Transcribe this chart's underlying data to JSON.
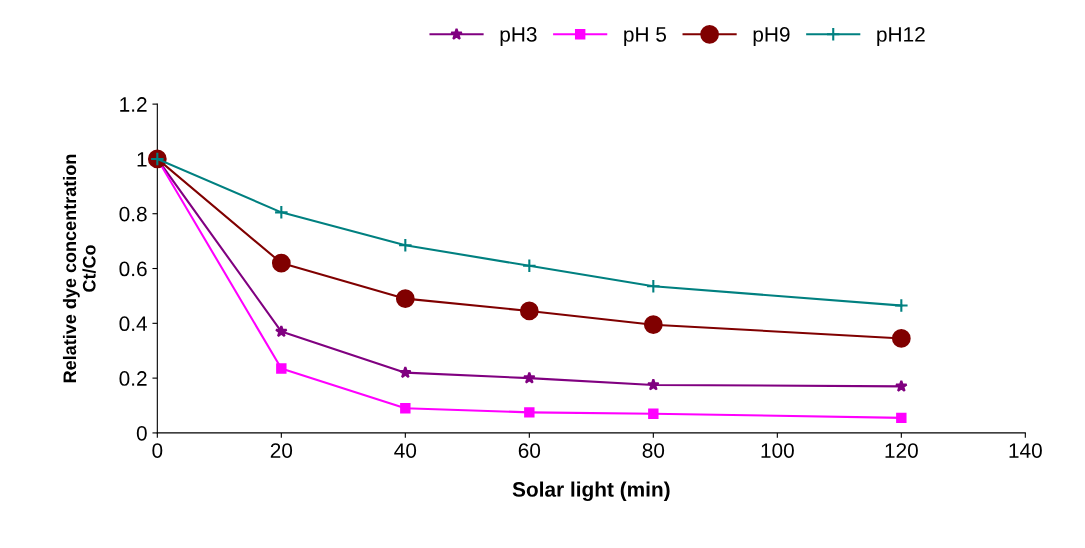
{
  "chart_data": {
    "type": "line",
    "xlabel": "Solar light (min)",
    "ylabel": "Relative dye concentration\nCt/Co",
    "x": [
      0,
      20,
      40,
      60,
      80,
      120
    ],
    "series": [
      {
        "name": "pH3",
        "color": "#800080",
        "marker": "star",
        "values": [
          1,
          0.37,
          0.22,
          0.2,
          0.175,
          0.17
        ]
      },
      {
        "name": "pH 5",
        "color": "#ff00ff",
        "marker": "square",
        "values": [
          1,
          0.235,
          0.09,
          0.075,
          0.07,
          0.055
        ]
      },
      {
        "name": "pH9",
        "color": "#800000",
        "marker": "circle",
        "values": [
          1,
          0.62,
          0.49,
          0.445,
          0.395,
          0.345
        ]
      },
      {
        "name": "pH12",
        "color": "#008080",
        "marker": "cross",
        "values": [
          1,
          0.805,
          0.685,
          0.61,
          0.535,
          0.465
        ]
      }
    ],
    "xlim": [
      0,
      140
    ],
    "xticks": [
      0,
      20,
      40,
      60,
      80,
      100,
      120,
      140
    ],
    "ylim": [
      0,
      1.2
    ],
    "yticks": [
      0,
      0.2,
      0.4,
      0.6,
      0.8,
      1,
      1.2
    ],
    "grid": false,
    "legend": "top"
  }
}
